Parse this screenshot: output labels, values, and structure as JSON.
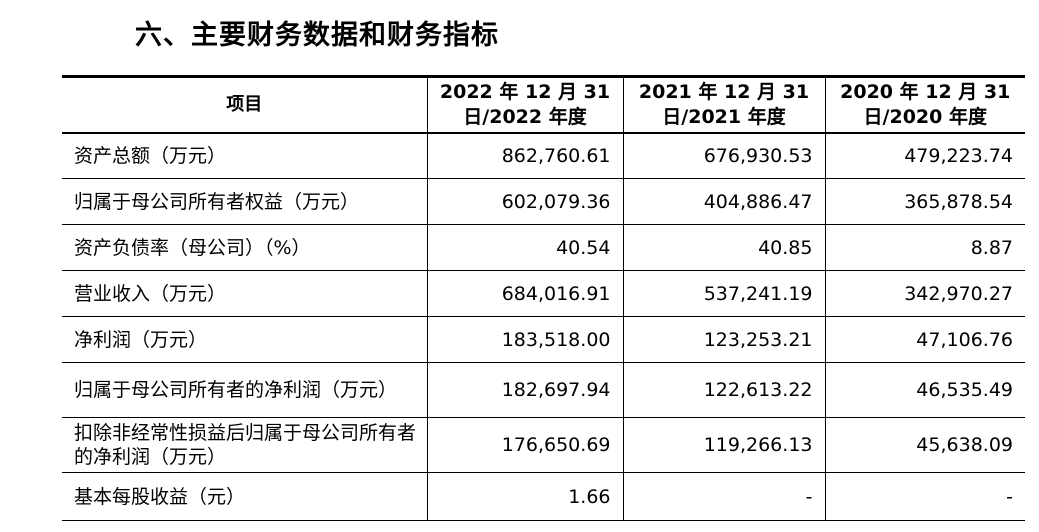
{
  "heading": "六、主要财务数据和财务指标",
  "table": {
    "columns": [
      "项目",
      "2022 年 12 月 31 日/2022 年度",
      "2021 年 12 月 31 日/2021 年度",
      "2020 年 12 月 31 日/2020 年度"
    ],
    "rows": [
      {
        "label": "资产总额（万元）",
        "values": [
          "862,760.61",
          "676,930.53",
          "479,223.74"
        ]
      },
      {
        "label": "归属于母公司所有者权益（万元）",
        "values": [
          "602,079.36",
          "404,886.47",
          "365,878.54"
        ]
      },
      {
        "label": "资产负债率（母公司）（%）",
        "values": [
          "40.54",
          "40.85",
          "8.87"
        ]
      },
      {
        "label": "营业收入（万元）",
        "values": [
          "684,016.91",
          "537,241.19",
          "342,970.27"
        ]
      },
      {
        "label": "净利润（万元）",
        "values": [
          "183,518.00",
          "123,253.21",
          "47,106.76"
        ]
      },
      {
        "label": "归属于母公司所有者的净利润（万元）",
        "values": [
          "182,697.94",
          "122,613.22",
          "46,535.49"
        ]
      },
      {
        "label": "扣除非经常性损益后归属于母公司所有者的净利润（万元）",
        "values": [
          "176,650.69",
          "119,266.13",
          "45,638.09"
        ]
      },
      {
        "label": "基本每股收益（元）",
        "values": [
          "1.66",
          "-",
          "-"
        ]
      }
    ]
  }
}
